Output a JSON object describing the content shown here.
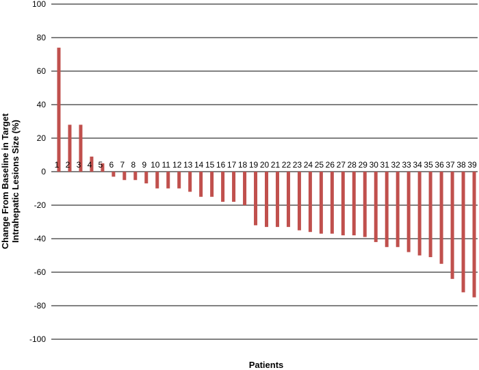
{
  "chart_data": {
    "type": "bar",
    "xlabel": "Patients",
    "ylabel_lines": [
      "Change From Baseline in Target",
      "Intrahepatic Lesions Size (%)"
    ],
    "ylim": [
      -100,
      100
    ],
    "yticks": [
      100,
      80,
      60,
      40,
      20,
      0,
      -20,
      -40,
      -60,
      -80,
      -100
    ],
    "grid": true,
    "bar_color": "#c0504d",
    "categories": [
      "1",
      "2",
      "3",
      "4",
      "5",
      "6",
      "7",
      "8",
      "9",
      "10",
      "11",
      "12",
      "13",
      "14",
      "15",
      "16",
      "17",
      "18",
      "19",
      "20",
      "21",
      "22",
      "23",
      "24",
      "25",
      "26",
      "27",
      "28",
      "29",
      "30",
      "31",
      "32",
      "33",
      "34",
      "35",
      "36",
      "37",
      "38",
      "39"
    ],
    "values": [
      74,
      28,
      28,
      9,
      5,
      -3,
      -5,
      -5,
      -7,
      -10,
      -10,
      -10,
      -12,
      -15,
      -15,
      -18,
      -18,
      -20,
      -32,
      -33,
      -33,
      -33,
      -35,
      -36,
      -37,
      -37,
      -38,
      -38,
      -39,
      -42,
      -45,
      -45,
      -48,
      -50,
      -51,
      -55,
      -64,
      -72,
      -75
    ]
  }
}
